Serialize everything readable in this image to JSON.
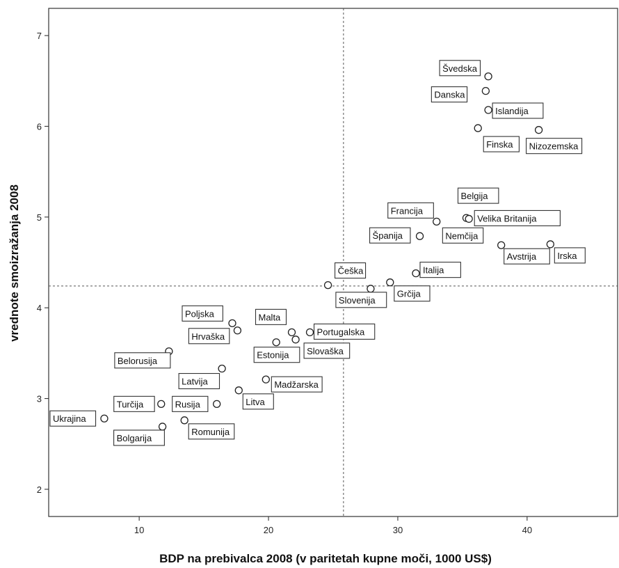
{
  "chart_data": {
    "type": "scatter",
    "xlabel": "BDP na prebivalca 2008 (v paritetah kupne moči, 1000 US$)",
    "ylabel": "vrednote smoizražanja 2008",
    "xlim": [
      3,
      47
    ],
    "ylim": [
      1.7,
      7.3
    ],
    "x_ticks": [
      10,
      20,
      30,
      40
    ],
    "y_ticks": [
      2,
      3,
      4,
      5,
      6,
      7
    ],
    "x_tick_labels": [
      "10",
      "20",
      "30",
      "40"
    ],
    "y_tick_labels": [
      "2",
      "3",
      "4",
      "5",
      "6",
      "7"
    ],
    "reference_lines": {
      "x": 25.8,
      "y": 4.24,
      "style": "dashed"
    },
    "grid": false,
    "points": [
      {
        "label": "Švedska",
        "x": 37.0,
        "y": 6.55
      },
      {
        "label": "Danska",
        "x": 36.8,
        "y": 6.39
      },
      {
        "label": "Islandija",
        "x": 37.0,
        "y": 6.18
      },
      {
        "label": "Finska",
        "x": 36.2,
        "y": 5.98
      },
      {
        "label": "Nizozemska",
        "x": 40.9,
        "y": 5.96
      },
      {
        "label": "Belgija",
        "x": 35.3,
        "y": 4.99
      },
      {
        "label": "Velika Britanija",
        "x": 35.5,
        "y": 4.98
      },
      {
        "label": "Francija",
        "x": 33.0,
        "y": 4.95
      },
      {
        "label": "Španija",
        "x": 31.7,
        "y": 4.79
      },
      {
        "label": "Nemčija",
        "x": 35.4,
        "y": 4.82
      },
      {
        "label": "Avstrija",
        "x": 38.0,
        "y": 4.69
      },
      {
        "label": "Irska",
        "x": 41.8,
        "y": 4.7
      },
      {
        "label": "Italija",
        "x": 31.4,
        "y": 4.38
      },
      {
        "label": "Grčija",
        "x": 29.4,
        "y": 4.28
      },
      {
        "label": "Češka",
        "x": 24.6,
        "y": 4.25
      },
      {
        "label": "Slovenija",
        "x": 27.9,
        "y": 4.21
      },
      {
        "label": "Poljska",
        "x": 17.2,
        "y": 3.83
      },
      {
        "label": "Hrvaška",
        "x": 17.6,
        "y": 3.75
      },
      {
        "label": "Malta",
        "x": 21.8,
        "y": 3.73
      },
      {
        "label": "Portugalska",
        "x": 23.2,
        "y": 3.73
      },
      {
        "label": "Estonija",
        "x": 20.6,
        "y": 3.62
      },
      {
        "label": "Slovaška",
        "x": 22.1,
        "y": 3.65
      },
      {
        "label": "Belorusija",
        "x": 12.3,
        "y": 3.52
      },
      {
        "label": "Latvija",
        "x": 16.4,
        "y": 3.33
      },
      {
        "label": "Madžarska",
        "x": 19.8,
        "y": 3.21
      },
      {
        "label": "Litva",
        "x": 17.7,
        "y": 3.09
      },
      {
        "label": "Turčija",
        "x": 11.7,
        "y": 2.94
      },
      {
        "label": "Rusija",
        "x": 16.0,
        "y": 2.94
      },
      {
        "label": "Ukrajina",
        "x": 7.3,
        "y": 2.78
      },
      {
        "label": "Romunija",
        "x": 13.5,
        "y": 2.76
      },
      {
        "label": "Bolgarija",
        "x": 11.8,
        "y": 2.69
      }
    ]
  }
}
